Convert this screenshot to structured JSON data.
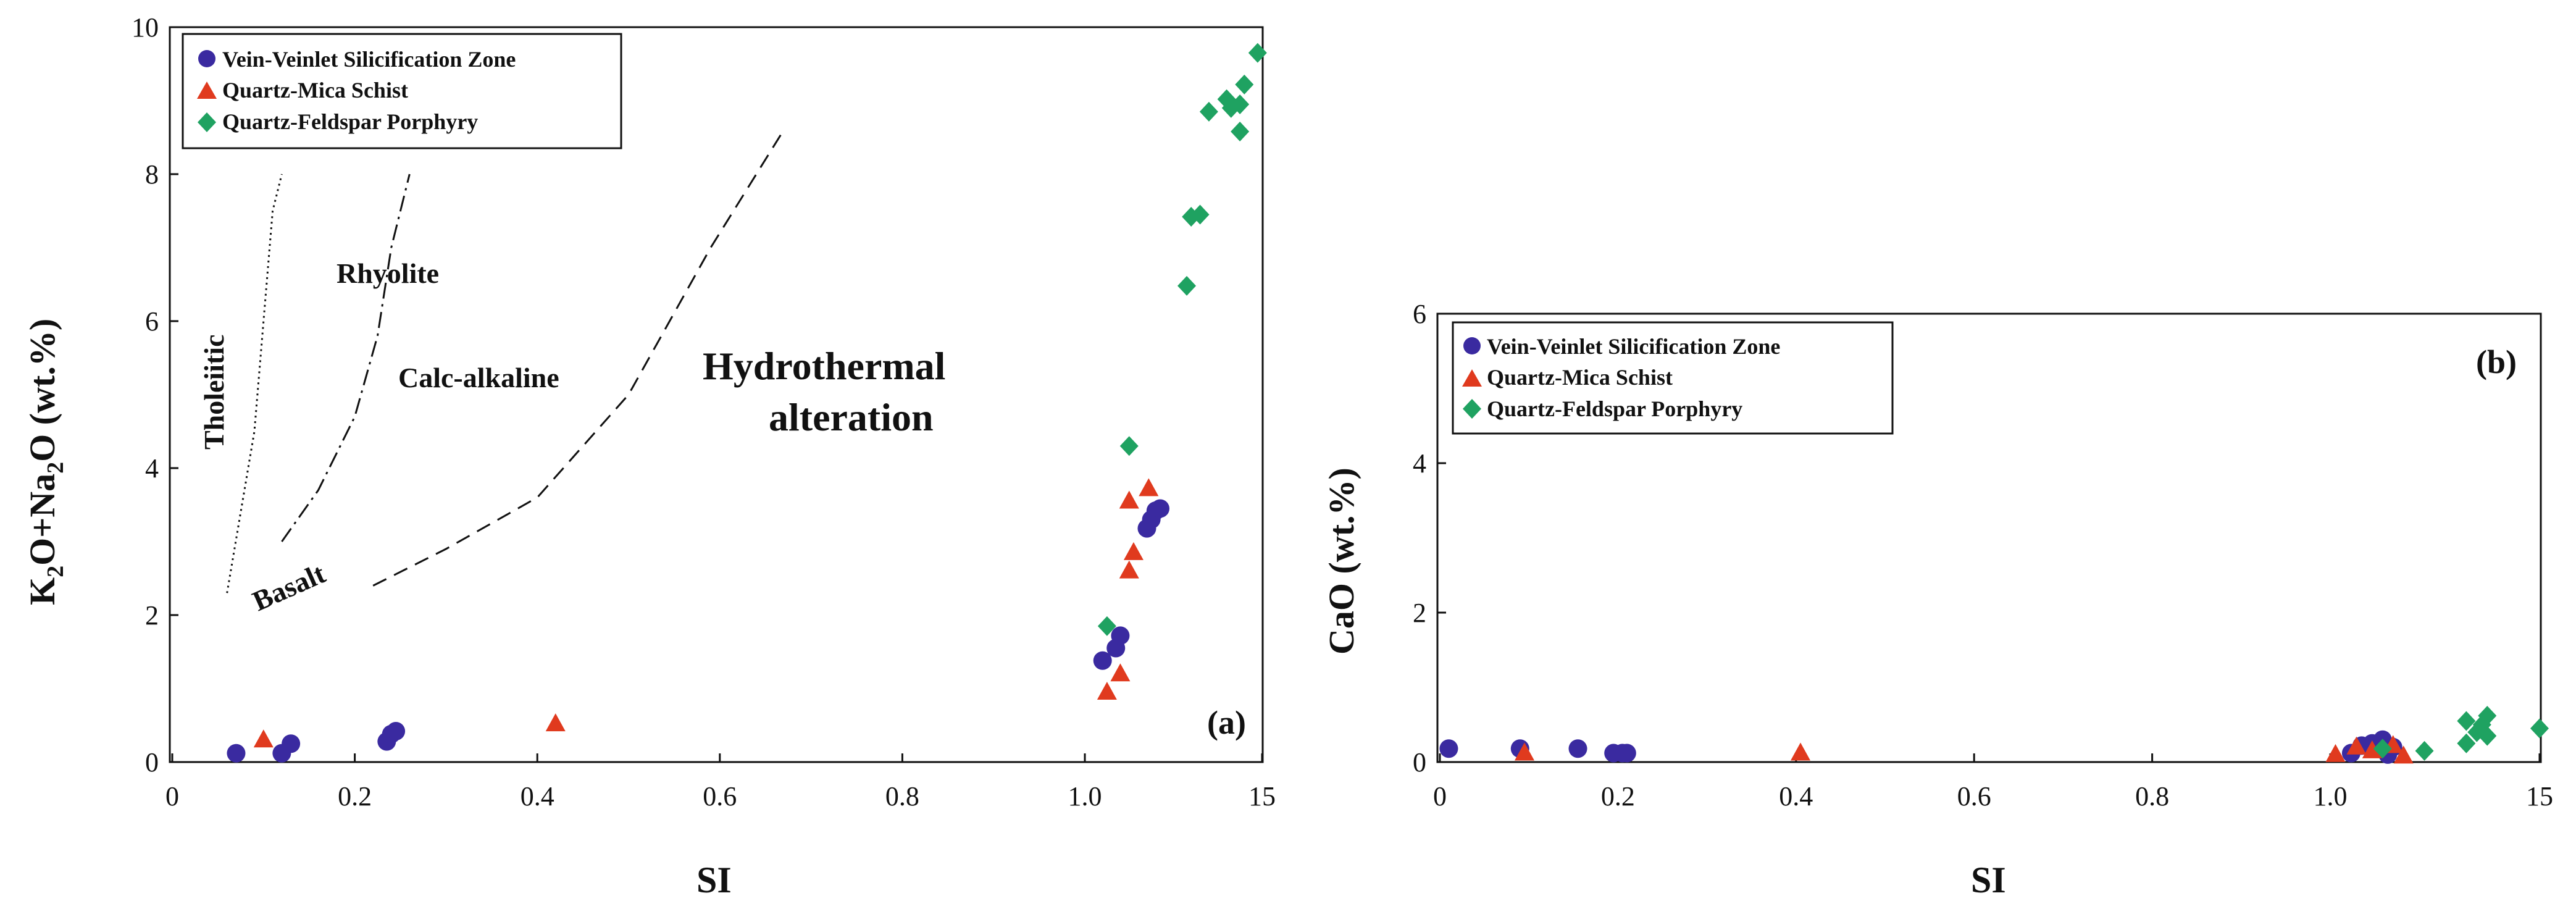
{
  "colors": {
    "vein": "#3a2aa0",
    "schist": "#e03a1e",
    "porphyry": "#1fa261",
    "axis": "#111111"
  },
  "chart_data": [
    {
      "type": "scatter",
      "panel_label": "(a)",
      "xlabel": "SI",
      "ylabel": "K2O+Na2O (wt.%)",
      "ylabel_parts": [
        "K",
        "2",
        "O+Na",
        "2",
        "O (wt.%)"
      ],
      "ylim": [
        0,
        10
      ],
      "y_ticks": [
        "0",
        "2",
        "4",
        "6",
        "8",
        "10"
      ],
      "x_ticks": [
        "0",
        "0.2",
        "0.4",
        "0.6",
        "0.8",
        "1.0",
        "15"
      ],
      "legend_position": "top-left",
      "series": [
        {
          "name": "Vein-Veinlet Silicification Zone",
          "marker": "circle",
          "color_key": "vein",
          "points": [
            [
              0.07,
              0.12
            ],
            [
              0.12,
              0.12
            ],
            [
              0.13,
              0.25
            ],
            [
              0.235,
              0.28
            ],
            [
              0.24,
              0.38
            ],
            [
              0.245,
              0.42
            ],
            [
              1.02,
              1.38
            ],
            [
              1.035,
              1.55
            ],
            [
              1.04,
              1.72
            ],
            [
              1.07,
              3.18
            ],
            [
              1.075,
              3.3
            ],
            [
              1.08,
              3.42
            ],
            [
              1.085,
              3.45
            ]
          ]
        },
        {
          "name": "Quartz-Mica Schist",
          "marker": "triangle",
          "color_key": "schist",
          "points": [
            [
              0.1,
              0.3
            ],
            [
              0.42,
              0.52
            ],
            [
              1.025,
              0.95
            ],
            [
              1.04,
              1.2
            ],
            [
              1.05,
              2.6
            ],
            [
              1.055,
              2.85
            ],
            [
              1.05,
              3.55
            ],
            [
              1.072,
              3.72
            ]
          ]
        },
        {
          "name": "Quartz-Feldspar Porphyry",
          "marker": "diamond",
          "color_key": "porphyry",
          "points": [
            [
              1.025,
              1.85
            ],
            [
              1.05,
              4.3
            ],
            [
              1.115,
              6.48
            ],
            [
              1.12,
              7.42
            ],
            [
              1.13,
              7.45
            ],
            [
              1.14,
              8.85
            ],
            [
              1.16,
              9.02
            ],
            [
              1.165,
              8.9
            ],
            [
              1.175,
              8.58
            ],
            [
              1.175,
              8.95
            ],
            [
              1.18,
              9.22
            ],
            [
              1.195,
              9.65
            ]
          ]
        }
      ],
      "field_labels": [
        "Tholeiitic",
        "Rhyolite",
        "Calc-alkaline",
        "Basalt",
        "Hydrothermal",
        "alteration"
      ],
      "curves": [
        {
          "name": "tholeiitic-line",
          "style": "dotted",
          "points": [
            [
              0.06,
              2.3
            ],
            [
              0.09,
              4.5
            ],
            [
              0.1,
              6
            ],
            [
              0.11,
              7.5
            ],
            [
              0.12,
              8
            ]
          ]
        },
        {
          "name": "rhyolite-line",
          "style": "dashdot",
          "points": [
            [
              0.12,
              3.0
            ],
            [
              0.16,
              3.7
            ],
            [
              0.2,
              4.7
            ],
            [
              0.225,
              5.8
            ],
            [
              0.24,
              7
            ],
            [
              0.26,
              8
            ]
          ]
        },
        {
          "name": "calc-alkaline-line",
          "style": "dashed",
          "points": [
            [
              0.22,
              2.4
            ],
            [
              0.3,
              2.9
            ],
            [
              0.4,
              3.6
            ],
            [
              0.5,
              5.0
            ],
            [
              0.59,
              7.0
            ],
            [
              0.67,
              8.6
            ]
          ]
        }
      ]
    },
    {
      "type": "scatter",
      "panel_label": "(b)",
      "xlabel": "SI",
      "ylabel": "CaO (wt.%)",
      "ylim": [
        0,
        6
      ],
      "y_ticks": [
        "0",
        "2",
        "4",
        "6"
      ],
      "x_ticks": [
        "0",
        "0.2",
        "0.4",
        "0.6",
        "0.8",
        "1.0",
        "15"
      ],
      "legend_position": "top-left",
      "series": [
        {
          "name": "Vein-Veinlet Silicification Zone",
          "marker": "circle",
          "color_key": "vein",
          "points": [
            [
              0.01,
              0.18
            ],
            [
              0.09,
              0.18
            ],
            [
              0.155,
              0.18
            ],
            [
              0.195,
              0.12
            ],
            [
              0.205,
              0.12
            ],
            [
              0.21,
              0.12
            ],
            [
              1.02,
              0.12
            ],
            [
              1.03,
              0.22
            ],
            [
              1.04,
              0.25
            ],
            [
              1.05,
              0.3
            ],
            [
              1.055,
              0.1
            ],
            [
              1.06,
              0.2
            ]
          ]
        },
        {
          "name": "Quartz-Mica Schist",
          "marker": "triangle",
          "color_key": "schist",
          "points": [
            [
              0.095,
              0.12
            ],
            [
              0.405,
              0.12
            ],
            [
              1.005,
              0.1
            ],
            [
              1.025,
              0.2
            ],
            [
              1.04,
              0.15
            ],
            [
              1.06,
              0.22
            ],
            [
              1.07,
              0.08
            ]
          ]
        },
        {
          "name": "Quartz-Feldspar Porphyry",
          "marker": "diamond",
          "color_key": "porphyry",
          "points": [
            [
              1.05,
              0.18
            ],
            [
              1.09,
              0.15
            ],
            [
              1.13,
              0.55
            ],
            [
              1.13,
              0.25
            ],
            [
              1.14,
              0.4
            ],
            [
              1.145,
              0.5
            ],
            [
              1.15,
              0.62
            ],
            [
              1.15,
              0.35
            ],
            [
              1.2,
              0.45
            ]
          ]
        }
      ]
    }
  ]
}
